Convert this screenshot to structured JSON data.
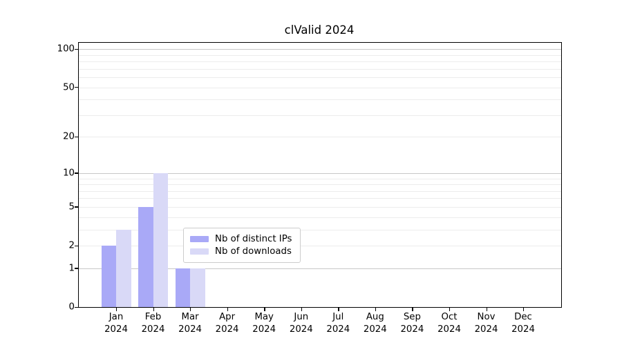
{
  "chart_data": {
    "type": "bar",
    "title": "clValid 2024",
    "categories": [
      "Jan",
      "Feb",
      "Mar",
      "Apr",
      "May",
      "Jun",
      "Jul",
      "Aug",
      "Sep",
      "Oct",
      "Nov",
      "Dec"
    ],
    "x_sublabel": "2024",
    "series": [
      {
        "name": "Nb of distinct IPs",
        "color": "#a9a9f7",
        "values": [
          2,
          5,
          1,
          0,
          0,
          0,
          0,
          0,
          0,
          0,
          0,
          0
        ]
      },
      {
        "name": "Nb of downloads",
        "color": "#d9d9f7",
        "values": [
          3,
          10,
          1,
          0,
          0,
          0,
          0,
          0,
          0,
          0,
          0,
          0
        ]
      }
    ],
    "y_axis": {
      "scale": "log1p",
      "ticks": [
        0,
        1,
        2,
        5,
        10,
        20,
        50,
        100
      ],
      "major_gridlines": [
        1,
        10,
        100
      ],
      "minor_gridlines": [
        2,
        3,
        4,
        5,
        6,
        7,
        8,
        9,
        20,
        30,
        40,
        50,
        60,
        70,
        80,
        90
      ],
      "ylim": [
        0,
        112
      ]
    },
    "legend_position": "bottom-center",
    "grid": "horizontal",
    "colors": {
      "major_grid": "#c8c8c8",
      "minor_grid": "#ececec",
      "axis": "#000000",
      "background": "#ffffff"
    }
  }
}
